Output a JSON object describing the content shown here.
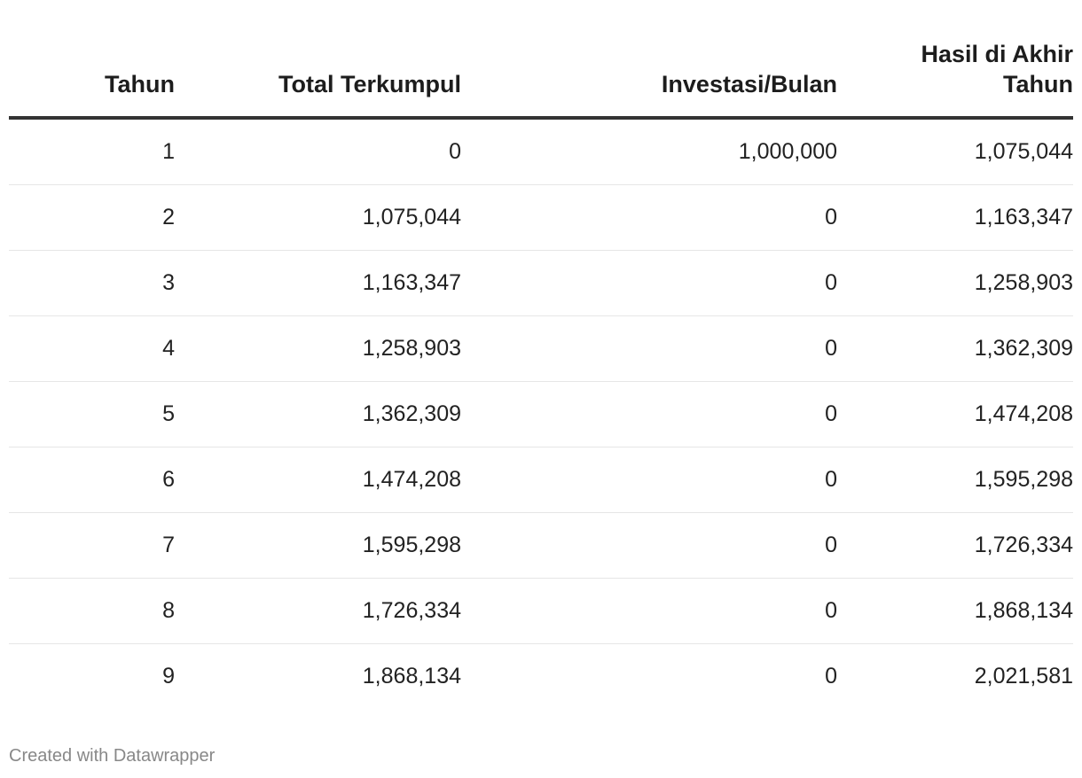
{
  "chart_data": {
    "type": "table",
    "columns": [
      "Tahun",
      "Total Terkumpul",
      "Investasi/Bulan",
      "Hasil di Akhir Tahun"
    ],
    "rows": [
      [
        "1",
        "0",
        "1,000,000",
        "1,075,044"
      ],
      [
        "2",
        "1,075,044",
        "0",
        "1,163,347"
      ],
      [
        "3",
        "1,163,347",
        "0",
        "1,258,903"
      ],
      [
        "4",
        "1,258,903",
        "0",
        "1,362,309"
      ],
      [
        "5",
        "1,362,309",
        "0",
        "1,474,208"
      ],
      [
        "6",
        "1,474,208",
        "0",
        "1,595,298"
      ],
      [
        "7",
        "1,595,298",
        "0",
        "1,726,334"
      ],
      [
        "8",
        "1,726,334",
        "0",
        "1,868,134"
      ],
      [
        "9",
        "1,868,134",
        "0",
        "2,021,581"
      ]
    ]
  },
  "footer": {
    "credit": "Created with Datawrapper"
  },
  "colors": {
    "header_rule": "#333333",
    "row_rule": "#e6e6e6",
    "footer_text": "#888888"
  }
}
